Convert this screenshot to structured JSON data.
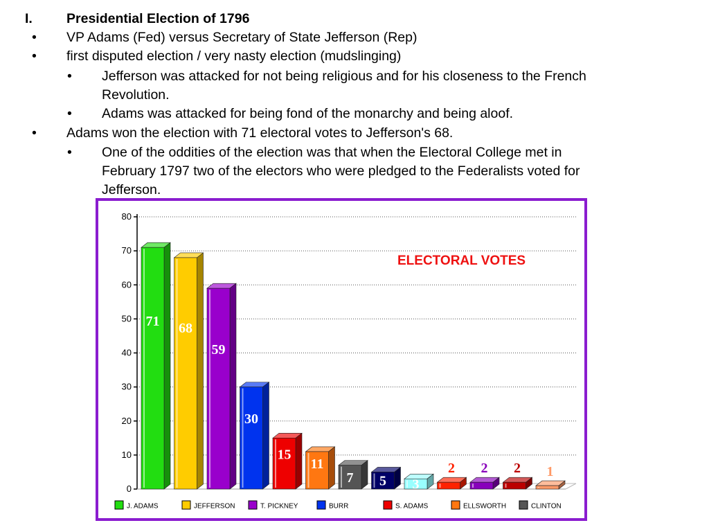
{
  "slide": {
    "heading_marker": "I.",
    "heading": "Presidential Election of 1796",
    "bullets": [
      {
        "marker": "•",
        "text": "VP Adams (Fed) versus Secretary of State Jefferson (Rep)"
      },
      {
        "marker": "•",
        "text": "first disputed election / very nasty election (mudslinging)"
      },
      {
        "marker": "•",
        "text": "Jefferson was attacked for not being religious and for his closeness to the French"
      },
      {
        "marker": "",
        "text": "Revolution."
      },
      {
        "marker": "•",
        "text": "Adams was attacked for being fond of the monarchy and being aloof."
      },
      {
        "marker": "•",
        "text": "Adams won the election with 71 electoral votes to Jefferson's 68."
      },
      {
        "marker": "•",
        "text": "One of the oddities of the election was that when the Electoral College met in"
      },
      {
        "marker": "",
        "text": "February 1797 two of the electors who were pledged to the Federalists voted for"
      },
      {
        "marker": "",
        "text": "Jefferson."
      }
    ]
  },
  "chart_data": {
    "type": "bar",
    "title": "ELECTORAL VOTES",
    "categories": [
      "J. ADAMS",
      "JEFFERSON",
      "T. PICKNEY",
      "BURR",
      "S. ADAMS",
      "ELLSWORTH",
      "CLINTON",
      "",
      "",
      "",
      "",
      "",
      ""
    ],
    "values": [
      71,
      68,
      59,
      30,
      15,
      11,
      7,
      5,
      3,
      2,
      2,
      2,
      1
    ],
    "data_labels": [
      "71",
      "68",
      "59",
      "30",
      "15",
      "11",
      "7",
      "5",
      "3",
      "2",
      "2",
      "2",
      "1"
    ],
    "colors": [
      "#22dd11",
      "#ffcc00",
      "#9900cc",
      "#0033ee",
      "#ee0000",
      "#ff7711",
      "#555555",
      "#000066",
      "#99ffff",
      "#ff2200",
      "#8800bb",
      "#bb0000",
      "#ff9966"
    ],
    "legend": [
      {
        "label": "J. ADAMS",
        "color": "#22dd11"
      },
      {
        "label": "JEFFERSON",
        "color": "#ffcc00"
      },
      {
        "label": "T. PICKNEY",
        "color": "#9900cc"
      },
      {
        "label": "BURR",
        "color": "#0033ee"
      },
      {
        "label": "S. ADAMS",
        "color": "#ee0000"
      },
      {
        "label": "ELLSWORTH",
        "color": "#ff7711"
      },
      {
        "label": "CLINTON",
        "color": "#555555"
      }
    ],
    "y_ticks": [
      "0",
      "10",
      "20",
      "30",
      "40",
      "50",
      "60",
      "70",
      "80"
    ],
    "ylim": [
      0,
      80
    ],
    "grid": true,
    "legend_position": "bottom",
    "title_color": "#ee1111",
    "border_color": "#8a1ccf"
  }
}
